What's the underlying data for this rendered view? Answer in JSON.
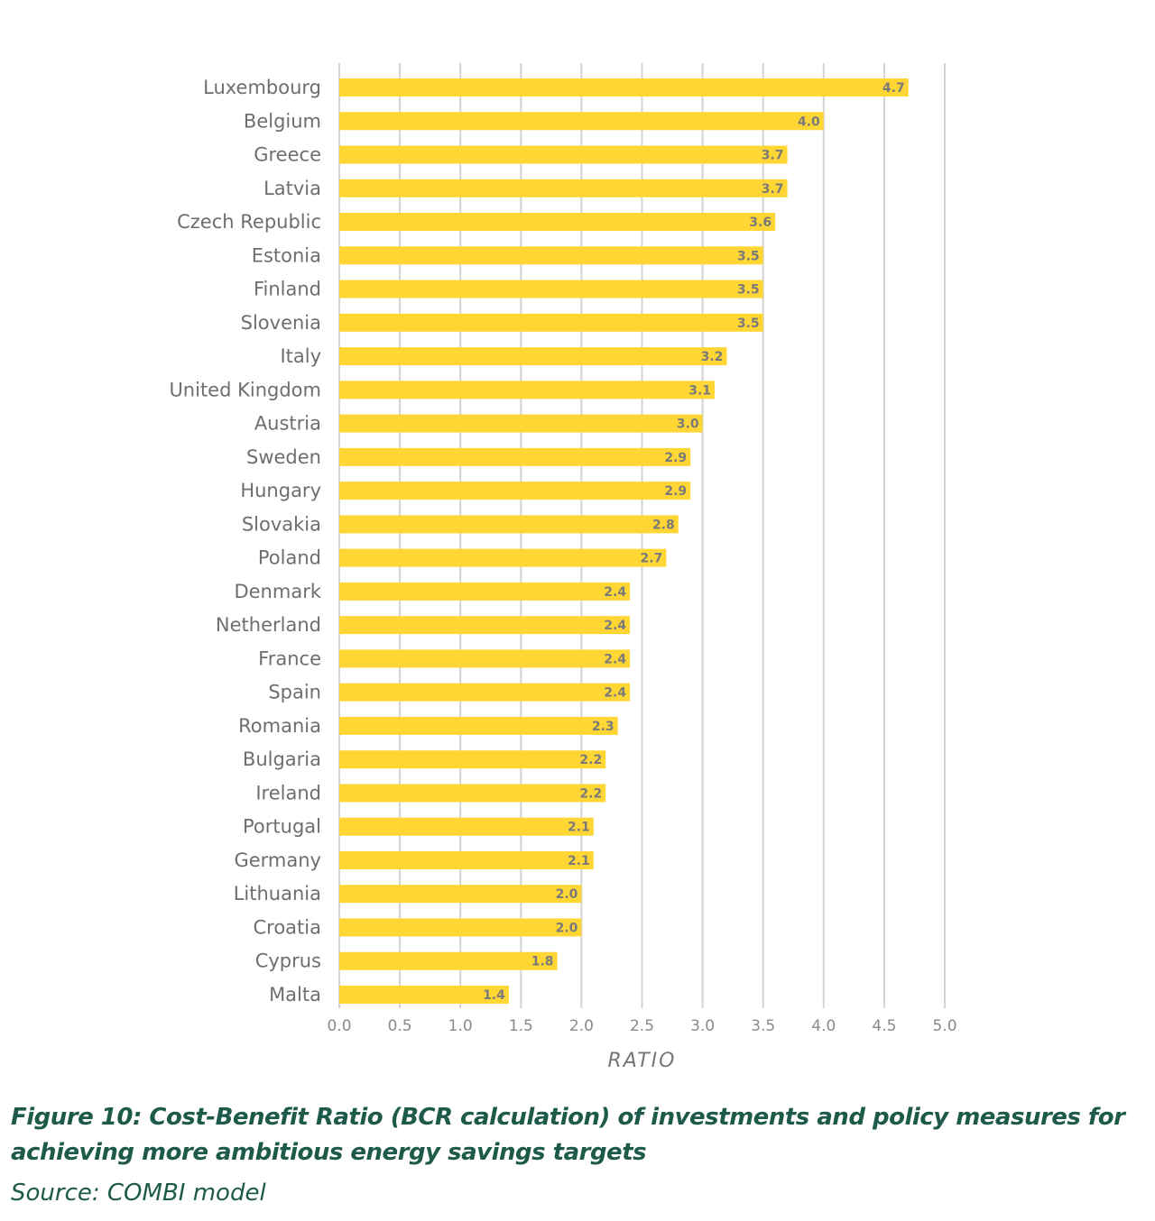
{
  "chart_data": {
    "type": "bar",
    "orientation": "horizontal",
    "categories": [
      "Luxembourg",
      "Belgium",
      "Greece",
      "Latvia",
      "Czech Republic",
      "Estonia",
      "Finland",
      "Slovenia",
      "Italy",
      "United Kingdom",
      "Austria",
      "Sweden",
      "Hungary",
      "Slovakia",
      "Poland",
      "Denmark",
      "Netherland",
      "France",
      "Spain",
      "Romania",
      "Bulgaria",
      "Ireland",
      "Portugal",
      "Germany",
      "Lithuania",
      "Croatia",
      "Cyprus",
      "Malta"
    ],
    "values": [
      4.7,
      4.0,
      3.7,
      3.7,
      3.6,
      3.5,
      3.5,
      3.5,
      3.2,
      3.1,
      3.0,
      2.9,
      2.9,
      2.8,
      2.7,
      2.4,
      2.4,
      2.4,
      2.4,
      2.3,
      2.2,
      2.2,
      2.1,
      2.1,
      2.0,
      2.0,
      1.8,
      1.4
    ],
    "xlabel": "RATIO",
    "xlim": [
      0,
      5
    ],
    "xticks": [
      "0.0",
      "0.5",
      "1.0",
      "1.5",
      "2.0",
      "2.5",
      "3.0",
      "3.5",
      "4.0",
      "4.5",
      "5.0"
    ],
    "grid": "vertical",
    "bar_color": "#FFD633",
    "label_color": "#7a7a7a"
  },
  "caption": {
    "title": "Figure 10: Cost-Benefit Ratio (BCR calculation) of investments and policy measures for achieving more ambitious energy savings targets",
    "source": "Source: COMBI model",
    "color": "#1d5a4a"
  }
}
